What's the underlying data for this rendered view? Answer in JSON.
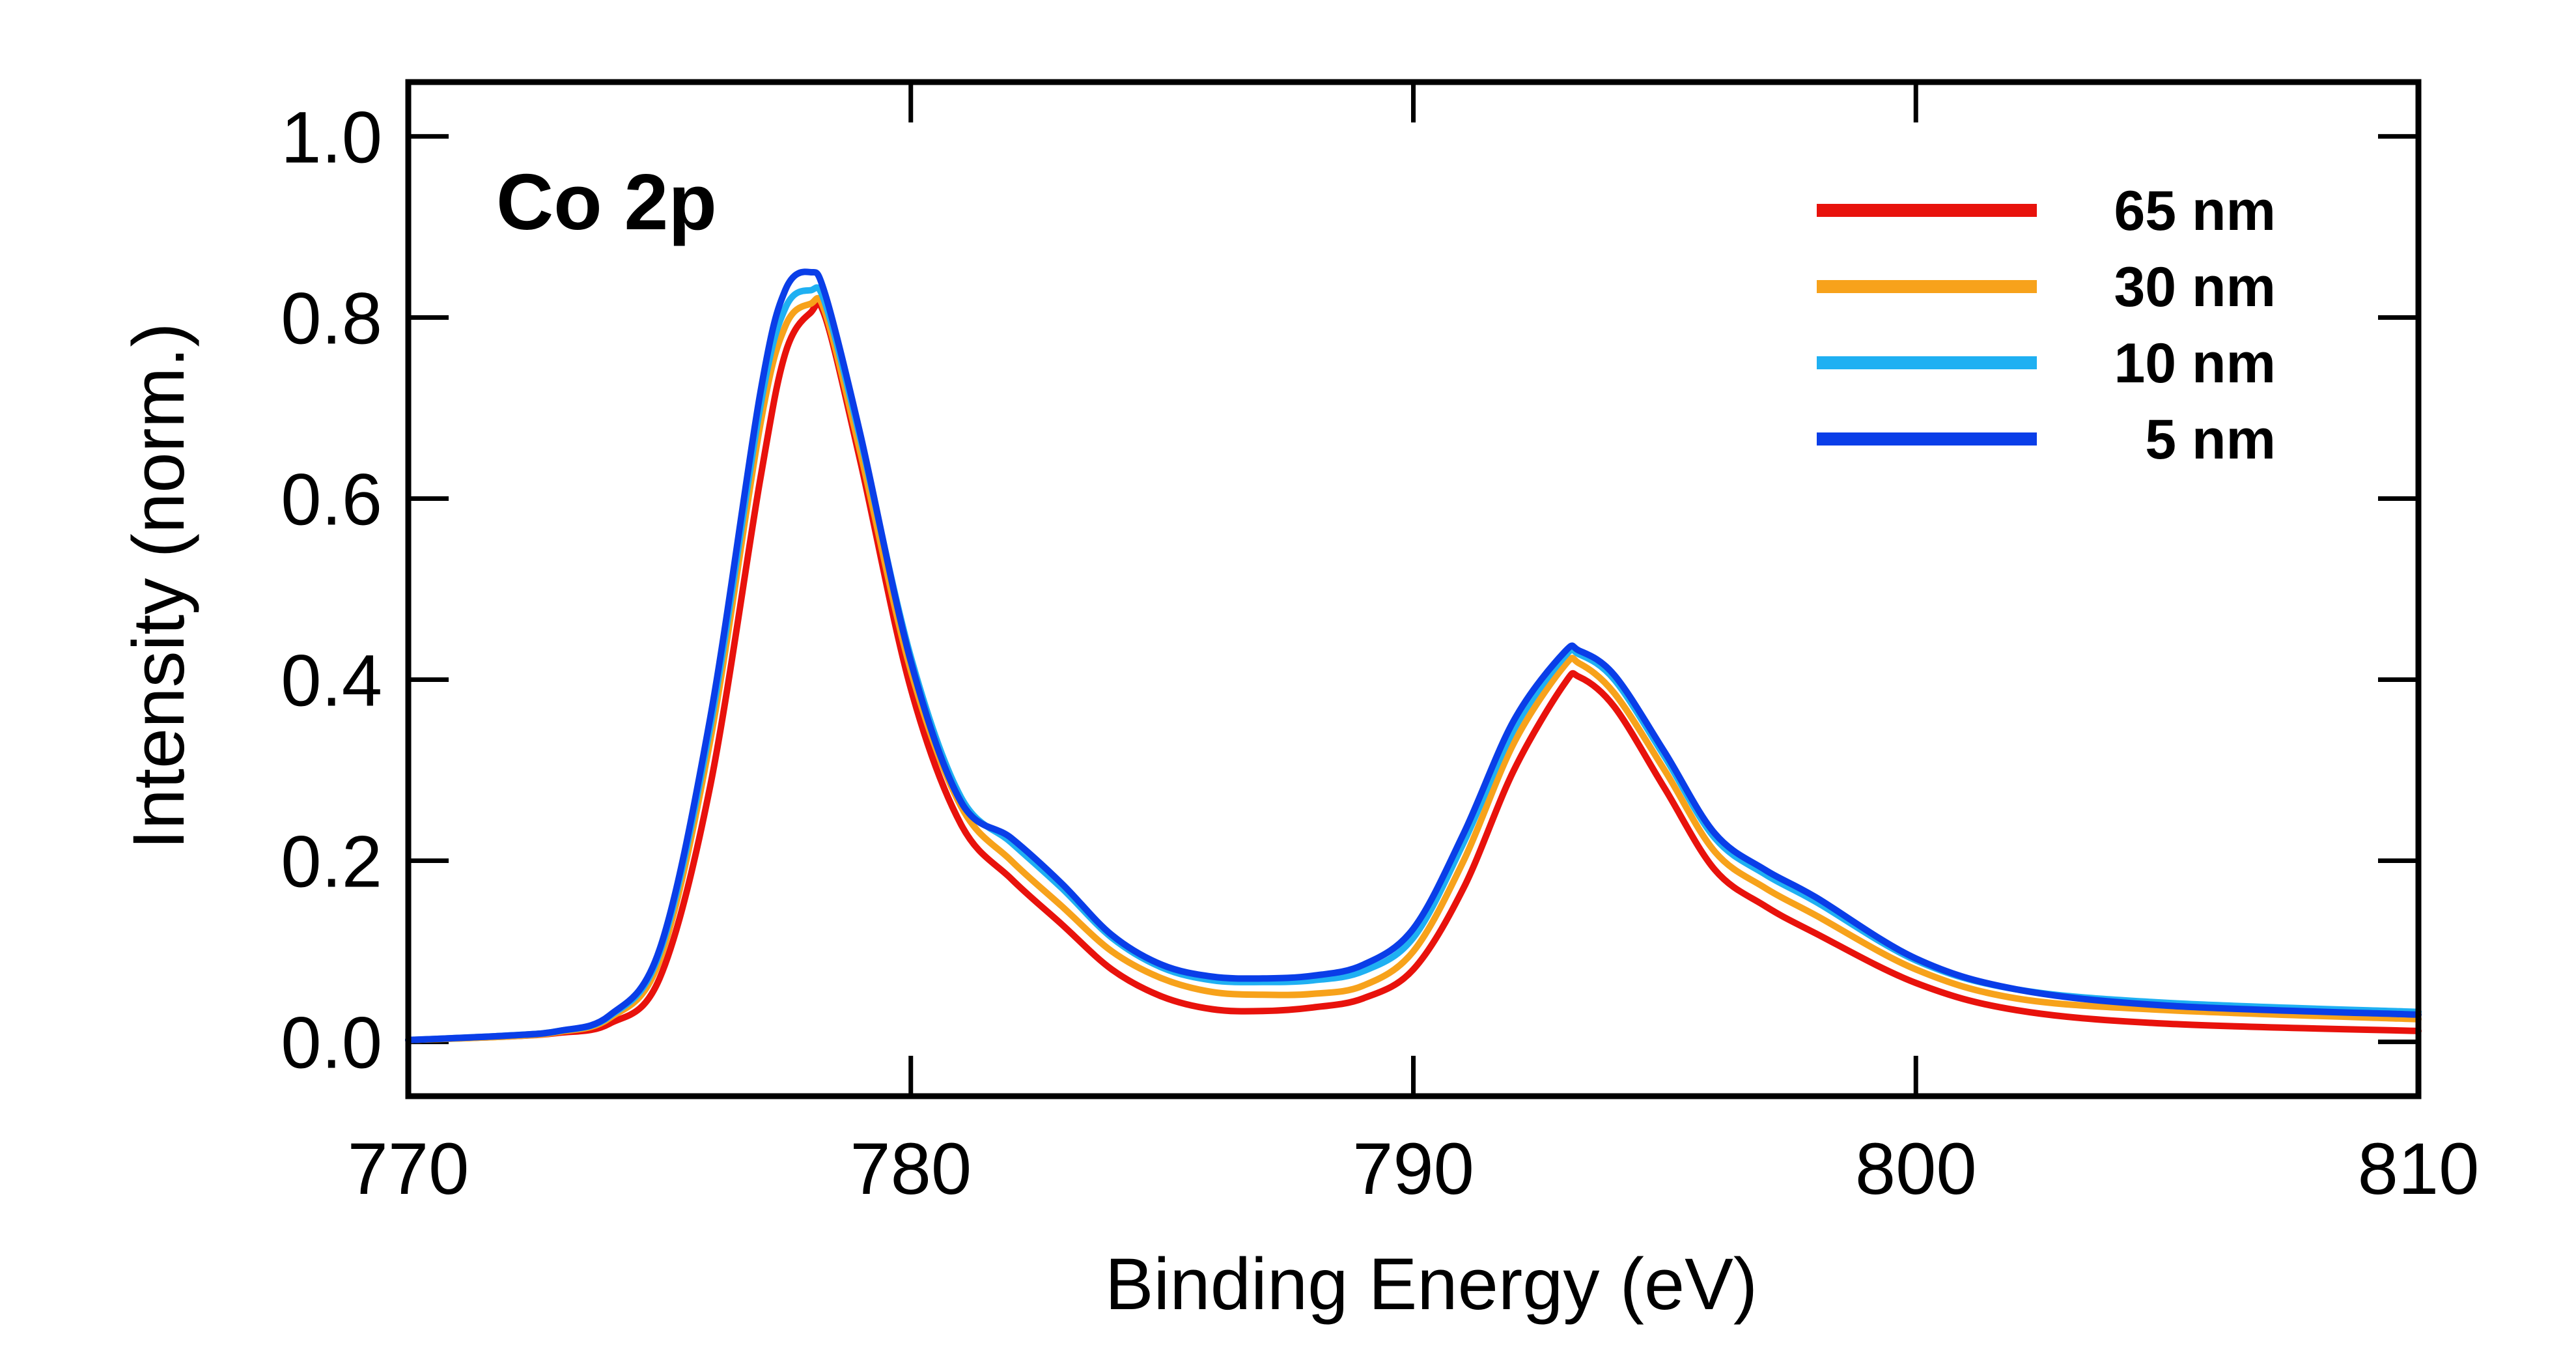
{
  "chart_data": {
    "type": "line",
    "title": "",
    "annotation": "Co 2p",
    "xlabel": "Binding Energy (eV)",
    "ylabel": "Intensity (norm.)",
    "xlim": [
      770,
      810
    ],
    "ylim": [
      -0.06,
      1.06
    ],
    "xticks": [
      770,
      780,
      790,
      800,
      810
    ],
    "xtick_labels": [
      "770",
      "780",
      "790",
      "800",
      "810"
    ],
    "yticks": [
      0.0,
      0.2,
      0.4,
      0.6,
      0.8,
      1.0
    ],
    "ytick_labels": [
      "0.0",
      "0.2",
      "0.4",
      "0.6",
      "0.8",
      "1.0"
    ],
    "legend_position": "top-right",
    "grid": false,
    "x": [
      770,
      772,
      773,
      774,
      775,
      776,
      777,
      777.5,
      778,
      778.3,
      779,
      780,
      781,
      782,
      783,
      784,
      785,
      786,
      787,
      788,
      789,
      790,
      791,
      792,
      793,
      793.3,
      794,
      795,
      796,
      797,
      798,
      800,
      802,
      805,
      810
    ],
    "series": [
      {
        "name": "65 nm",
        "color": "#e8120c",
        "values": [
          0.002,
          0.006,
          0.01,
          0.02,
          0.07,
          0.28,
          0.62,
          0.76,
          0.805,
          0.8,
          0.64,
          0.39,
          0.24,
          0.18,
          0.13,
          0.08,
          0.05,
          0.036,
          0.034,
          0.038,
          0.048,
          0.08,
          0.17,
          0.3,
          0.395,
          0.403,
          0.37,
          0.28,
          0.19,
          0.15,
          0.12,
          0.065,
          0.035,
          0.02,
          0.012
        ]
      },
      {
        "name": "30 nm",
        "color": "#f7a21b",
        "values": [
          0.002,
          0.006,
          0.011,
          0.026,
          0.09,
          0.33,
          0.68,
          0.79,
          0.815,
          0.805,
          0.65,
          0.41,
          0.26,
          0.2,
          0.15,
          0.1,
          0.07,
          0.055,
          0.052,
          0.053,
          0.062,
          0.1,
          0.2,
          0.33,
          0.415,
          0.418,
          0.385,
          0.3,
          0.21,
          0.17,
          0.14,
          0.08,
          0.048,
          0.035,
          0.025
        ]
      },
      {
        "name": "10 nm",
        "color": "#1fb0f2",
        "values": [
          0.002,
          0.007,
          0.012,
          0.028,
          0.098,
          0.345,
          0.7,
          0.81,
          0.83,
          0.815,
          0.665,
          0.425,
          0.27,
          0.22,
          0.17,
          0.115,
          0.082,
          0.068,
          0.066,
          0.068,
          0.078,
          0.115,
          0.22,
          0.345,
          0.425,
          0.428,
          0.4,
          0.315,
          0.225,
          0.185,
          0.155,
          0.09,
          0.058,
          0.043,
          0.033
        ]
      },
      {
        "name": "5 nm",
        "color": "#0a3ee8",
        "values": [
          0.002,
          0.007,
          0.012,
          0.029,
          0.102,
          0.355,
          0.715,
          0.83,
          0.85,
          0.825,
          0.67,
          0.42,
          0.265,
          0.225,
          0.175,
          0.118,
          0.085,
          0.072,
          0.07,
          0.073,
          0.085,
          0.125,
          0.23,
          0.355,
          0.43,
          0.432,
          0.405,
          0.32,
          0.23,
          0.19,
          0.16,
          0.092,
          0.058,
          0.04,
          0.03
        ]
      }
    ]
  }
}
